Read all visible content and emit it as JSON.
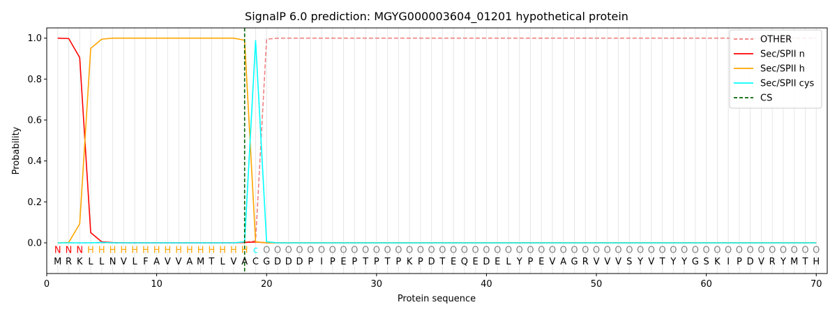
{
  "chart_data": {
    "type": "line",
    "title": "SignalP 6.0 prediction: MGYG000003604_01201 hypothetical protein",
    "xlabel": "Protein sequence",
    "ylabel": "Probability",
    "xlim": [
      0,
      71
    ],
    "ylim": [
      -0.15,
      1.05
    ],
    "x_ticks": [
      0,
      10,
      20,
      30,
      40,
      50,
      60,
      70
    ],
    "y_ticks": [
      0.0,
      0.2,
      0.4,
      0.6,
      0.8,
      1.0
    ],
    "x_tick_labels": [
      "0",
      "10",
      "20",
      "30",
      "40",
      "50",
      "60",
      "70"
    ],
    "y_tick_labels": [
      "0.0",
      "0.2",
      "0.4",
      "0.6",
      "0.8",
      "1.0"
    ],
    "grid": "vertical lines at each residue",
    "legend_position": "top-right",
    "sequence": "MRKLLNVLFAVVAMTLVACGDDDPIPEPTPTPKPDTEQEDELYPEVAGRVVVSYVTYYGSKIPDVRYMTH",
    "labels": "NNNHHHHHHHHHHHHHHHcOOOOOOOOOOOOOOOOOOOOOOOOOOOOOOOOOOOOOOOOOOOOOOOOOOO",
    "label_colors": {
      "N": "#ff0000",
      "H": "#ffa500",
      "c": "#00ffff",
      "O": "#808080"
    },
    "cleavage_site": 18,
    "series": [
      {
        "name": "OTHER",
        "color": "#f08080",
        "dash": "dashed",
        "x": [
          1,
          2,
          3,
          4,
          5,
          6,
          7,
          8,
          9,
          10,
          11,
          12,
          13,
          14,
          15,
          16,
          17,
          18,
          19,
          20,
          21,
          22,
          23,
          24,
          25,
          70
        ],
        "y": [
          0,
          0,
          0,
          0,
          0,
          0,
          0,
          0,
          0,
          0,
          0,
          0,
          0,
          0,
          0,
          0,
          0,
          0.002,
          0.01,
          0.995,
          1.0,
          1.0,
          1.0,
          1.0,
          1.0,
          1.0
        ]
      },
      {
        "name": "Sec/SPII n",
        "color": "#ff0000",
        "dash": "solid",
        "x": [
          1,
          2,
          3,
          4,
          5,
          6,
          7,
          8,
          15,
          16,
          17,
          18,
          19,
          20,
          21,
          22,
          70
        ],
        "y": [
          1.0,
          0.998,
          0.905,
          0.05,
          0.005,
          0.001,
          0,
          0,
          0,
          0,
          0,
          0.002,
          0.004,
          0.0,
          0,
          0,
          0
        ]
      },
      {
        "name": "Sec/SPII h",
        "color": "#ffa500",
        "dash": "solid",
        "x": [
          1,
          2,
          3,
          4,
          5,
          6,
          7,
          8,
          9,
          10,
          11,
          12,
          13,
          14,
          15,
          16,
          17,
          18,
          19,
          20,
          21,
          22,
          70
        ],
        "y": [
          0,
          0.002,
          0.093,
          0.95,
          0.995,
          1.0,
          1.0,
          1.0,
          1.0,
          1.0,
          1.0,
          1.0,
          1.0,
          1.0,
          1.0,
          1.0,
          1.0,
          0.99,
          0.005,
          0.0,
          0,
          0,
          0
        ]
      },
      {
        "name": "Sec/SPII cys",
        "color": "#00ffff",
        "dash": "solid",
        "x": [
          1,
          2,
          3,
          4,
          5,
          6,
          7,
          8,
          15,
          16,
          17,
          18,
          19,
          20,
          21,
          22,
          70
        ],
        "y": [
          0,
          0,
          0,
          0,
          0.002,
          0,
          0,
          0,
          0,
          0,
          0,
          0.005,
          0.988,
          0.005,
          0,
          0,
          0
        ]
      }
    ],
    "legend": [
      {
        "label": "OTHER",
        "color": "#f08080",
        "dash": "dashed"
      },
      {
        "label": "Sec/SPII n",
        "color": "#ff0000",
        "dash": "solid"
      },
      {
        "label": "Sec/SPII h",
        "color": "#ffa500",
        "dash": "solid"
      },
      {
        "label": "Sec/SPII cys",
        "color": "#00ffff",
        "dash": "solid"
      },
      {
        "label": "CS",
        "color": "#006400",
        "dash": "dashed"
      }
    ]
  }
}
